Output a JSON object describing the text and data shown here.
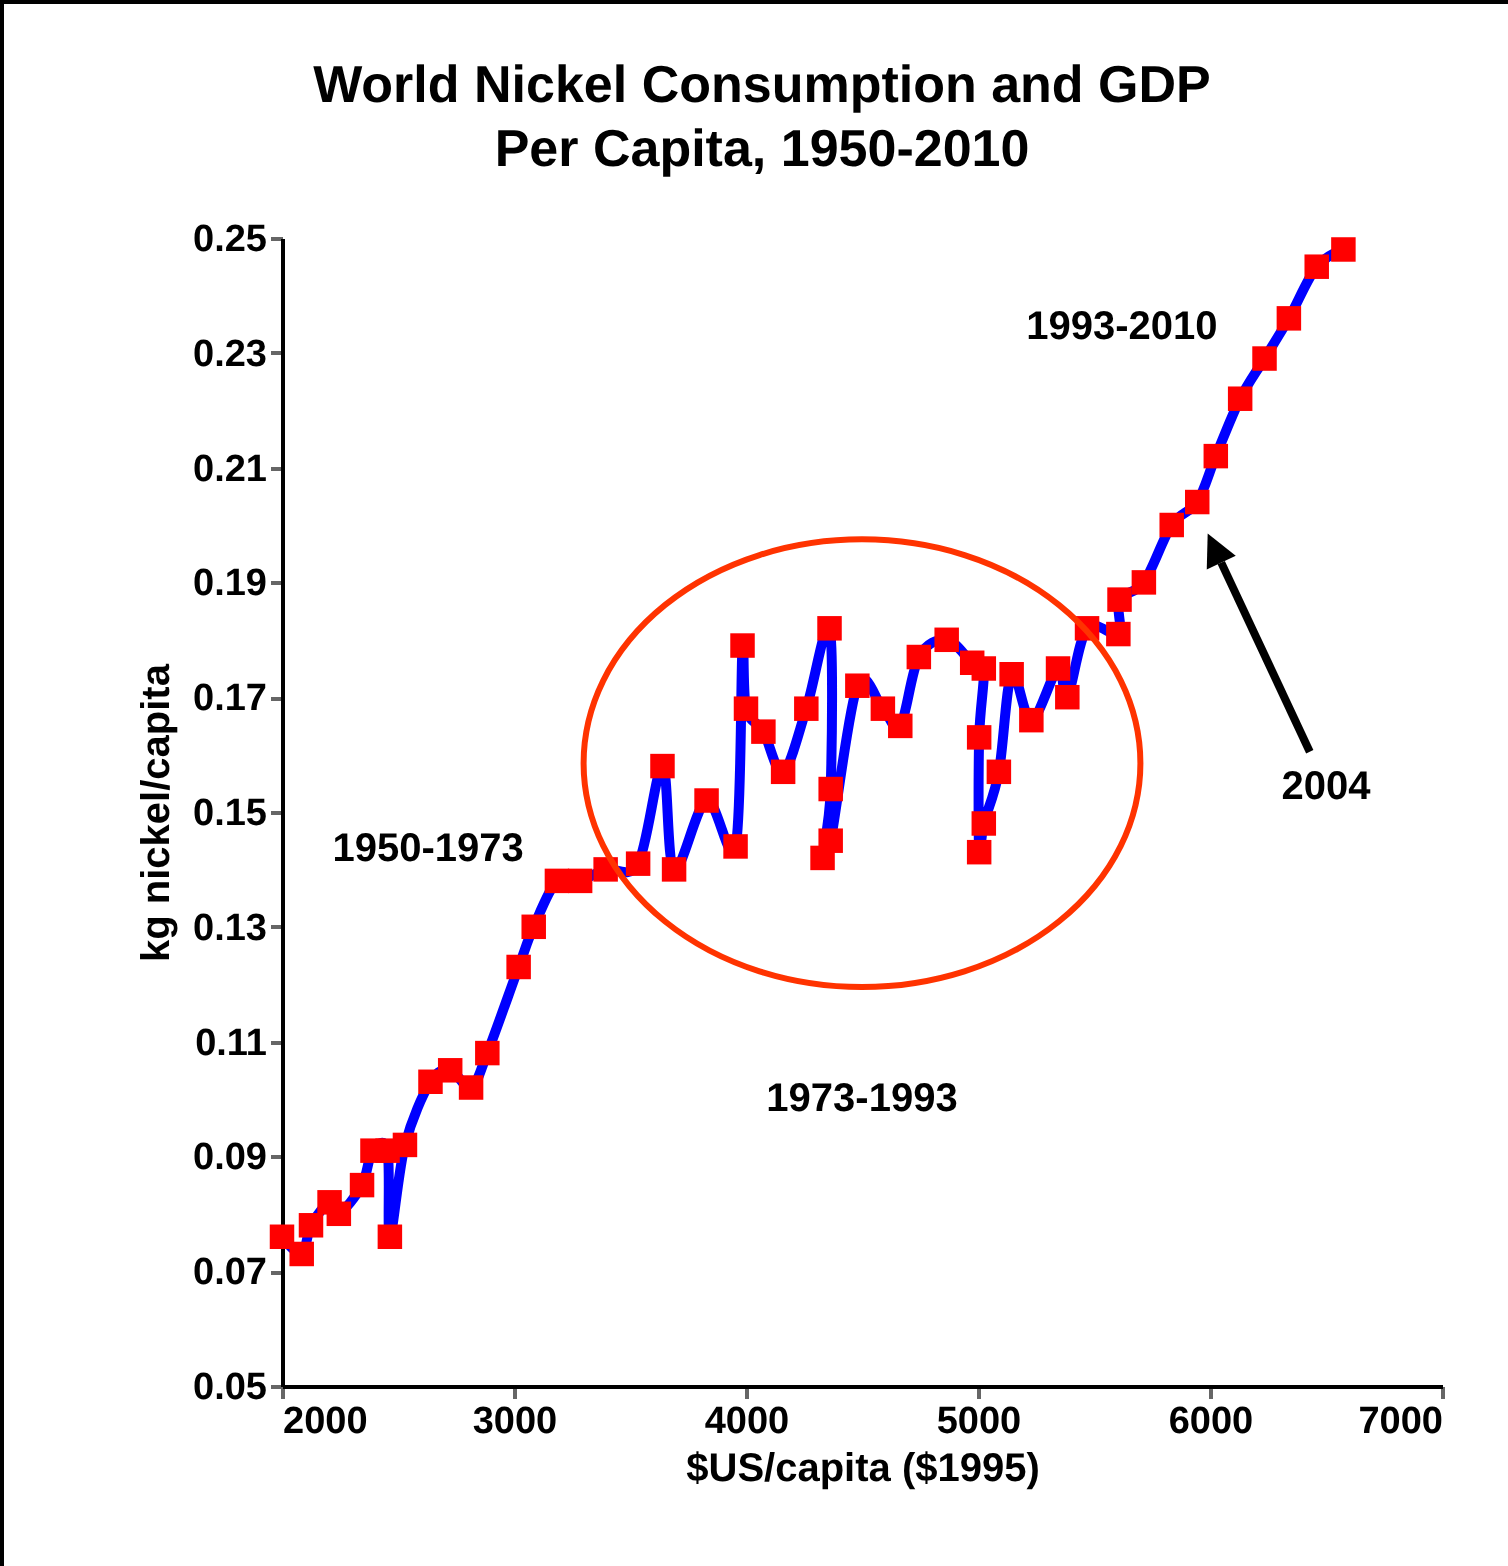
{
  "chart_data": {
    "type": "line",
    "title": "World Nickel Consumption and GDP\nPer Capita, 1950-2010",
    "xlabel": "$US/capita ($1995)",
    "ylabel": "kg nickel/capita",
    "x": [
      2000,
      2085,
      2125,
      2205,
      2245,
      2345,
      2390,
      2455,
      2465,
      2530,
      2640,
      2725,
      2815,
      2885,
      3020,
      3085,
      3185,
      3285,
      3395,
      3535,
      3640,
      3690,
      3830,
      3955,
      3985,
      4000,
      4075,
      4160,
      4260,
      4360,
      4365,
      4330,
      4365,
      4480,
      4590,
      4665,
      4745,
      4865,
      4975,
      5025,
      5005,
      5005,
      5025,
      5090,
      5145,
      5230,
      5345,
      5385,
      5470,
      5605,
      5610,
      5715,
      5835,
      5945,
      6025,
      6130,
      6235,
      6340,
      6460,
      6575
    ],
    "series": [
      {
        "color": "#0000ff",
        "values": [
          0.076,
          0.073,
          0.078,
          0.082,
          0.08,
          0.085,
          0.091,
          0.091,
          0.076,
          0.092,
          0.103,
          0.105,
          0.102,
          0.108,
          0.123,
          0.13,
          0.138,
          0.138,
          0.14,
          0.141,
          0.158,
          0.14,
          0.152,
          0.144,
          0.179,
          0.168,
          0.164,
          0.157,
          0.168,
          0.182,
          0.154,
          0.142,
          0.145,
          0.172,
          0.168,
          0.165,
          0.177,
          0.18,
          0.176,
          0.175,
          0.163,
          0.143,
          0.148,
          0.157,
          0.174,
          0.166,
          0.175,
          0.17,
          0.182,
          0.181,
          0.187,
          0.19,
          0.2,
          0.204,
          0.212,
          0.222,
          0.229,
          0.236,
          0.245,
          0.248
        ]
      }
    ],
    "marker": "square",
    "line_style": "solid",
    "grid": false,
    "xlim": [
      2000,
      7000
    ],
    "xticks": [
      2000,
      3000,
      4000,
      5000,
      6000,
      7000
    ],
    "ylim": [
      0.05,
      0.25
    ],
    "yticks": [
      0.05,
      0.07,
      0.09,
      0.11,
      0.13,
      0.15,
      0.17,
      0.19,
      0.21,
      0.23,
      0.25
    ],
    "annotations": [
      "1950-1973",
      "1973-1993",
      "1993-2010",
      "2004"
    ]
  }
}
